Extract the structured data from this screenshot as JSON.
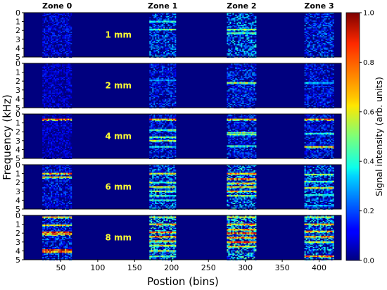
{
  "chart_data": {
    "type": "heatmap",
    "xlabel": "Postion (bins)",
    "ylabel": "Frequency (kHz)",
    "colorbar_label": "Signal intensity (arb. units)",
    "colormap": "jet",
    "xlim": [
      0,
      430
    ],
    "ylim": [
      0,
      5
    ],
    "y_inverted": true,
    "xticks": [
      50,
      100,
      150,
      200,
      250,
      300,
      350,
      400
    ],
    "yticks": [
      0,
      1,
      2,
      3,
      4,
      5
    ],
    "colorbar_range": [
      0.0,
      1.0
    ],
    "colorbar_ticks": [
      "0.0",
      "0.2",
      "0.4",
      "0.6",
      "0.8",
      "1.0"
    ],
    "zones": [
      {
        "label": "Zone 0",
        "x_range": [
          25,
          65
        ],
        "x_center": 45
      },
      {
        "label": "Zone 1",
        "x_range": [
          170,
          205
        ],
        "x_center": 188
      },
      {
        "label": "Zone 2",
        "x_range": [
          275,
          315
        ],
        "x_center": 295
      },
      {
        "label": "Zone 3",
        "x_range": [
          380,
          420
        ],
        "x_center": 400
      }
    ],
    "panels": [
      {
        "label": "1 mm",
        "zone_intensity": [
          0.15,
          0.25,
          0.3,
          0.22
        ],
        "bands": [
          {
            "zone": 1,
            "freq": 1.0,
            "intensity": 0.45
          },
          {
            "zone": 1,
            "freq": 1.9,
            "intensity": 0.55
          },
          {
            "zone": 2,
            "freq": 1.9,
            "intensity": 0.6
          },
          {
            "zone": 2,
            "freq": 2.3,
            "intensity": 0.5
          }
        ]
      },
      {
        "label": "2 mm",
        "zone_intensity": [
          0.12,
          0.2,
          0.22,
          0.18
        ],
        "bands": [
          {
            "zone": 1,
            "freq": 1.9,
            "intensity": 0.3
          },
          {
            "zone": 2,
            "freq": 2.2,
            "intensity": 0.6
          },
          {
            "zone": 3,
            "freq": 2.2,
            "intensity": 0.35
          }
        ]
      },
      {
        "label": "4 mm",
        "zone_intensity": [
          0.12,
          0.2,
          0.2,
          0.2
        ],
        "bands": [
          {
            "zone": 0,
            "freq": 0.6,
            "intensity": 0.8
          },
          {
            "zone": 1,
            "freq": 0.6,
            "intensity": 0.8
          },
          {
            "zone": 2,
            "freq": 0.6,
            "intensity": 0.8
          },
          {
            "zone": 3,
            "freq": 0.6,
            "intensity": 0.8
          },
          {
            "zone": 1,
            "freq": 1.8,
            "intensity": 0.5
          },
          {
            "zone": 1,
            "freq": 2.6,
            "intensity": 0.55
          },
          {
            "zone": 1,
            "freq": 3.0,
            "intensity": 0.65
          },
          {
            "zone": 1,
            "freq": 3.7,
            "intensity": 0.45
          },
          {
            "zone": 2,
            "freq": 2.1,
            "intensity": 0.6
          },
          {
            "zone": 2,
            "freq": 2.3,
            "intensity": 0.55
          },
          {
            "zone": 2,
            "freq": 3.6,
            "intensity": 0.45
          },
          {
            "zone": 3,
            "freq": 2.2,
            "intensity": 0.45
          },
          {
            "zone": 3,
            "freq": 3.7,
            "intensity": 0.75
          }
        ]
      },
      {
        "label": "6 mm",
        "zone_intensity": [
          0.18,
          0.28,
          0.32,
          0.28
        ],
        "bands": [
          {
            "zone": 0,
            "freq": 1.0,
            "intensity": 0.8
          },
          {
            "zone": 0,
            "freq": 1.4,
            "intensity": 0.7
          },
          {
            "zone": 1,
            "freq": 1.0,
            "intensity": 0.7
          },
          {
            "zone": 1,
            "freq": 2.0,
            "intensity": 0.55
          },
          {
            "zone": 1,
            "freq": 2.5,
            "intensity": 0.65
          },
          {
            "zone": 1,
            "freq": 3.0,
            "intensity": 0.6
          },
          {
            "zone": 1,
            "freq": 3.5,
            "intensity": 0.5
          },
          {
            "zone": 1,
            "freq": 4.0,
            "intensity": 0.45
          },
          {
            "zone": 2,
            "freq": 1.0,
            "intensity": 0.8
          },
          {
            "zone": 2,
            "freq": 1.6,
            "intensity": 0.85
          },
          {
            "zone": 2,
            "freq": 2.1,
            "intensity": 0.75
          },
          {
            "zone": 2,
            "freq": 2.5,
            "intensity": 0.8
          },
          {
            "zone": 2,
            "freq": 3.0,
            "intensity": 0.75
          },
          {
            "zone": 2,
            "freq": 3.5,
            "intensity": 0.6
          },
          {
            "zone": 3,
            "freq": 1.1,
            "intensity": 0.6
          },
          {
            "zone": 3,
            "freq": 1.9,
            "intensity": 0.55
          },
          {
            "zone": 3,
            "freq": 2.6,
            "intensity": 0.7
          },
          {
            "zone": 3,
            "freq": 3.4,
            "intensity": 0.45
          },
          {
            "zone": 3,
            "freq": 4.6,
            "intensity": 0.35
          }
        ]
      },
      {
        "label": "8 mm",
        "zone_intensity": [
          0.22,
          0.35,
          0.38,
          0.32
        ],
        "bands": [
          {
            "zone": 0,
            "freq": 0.2,
            "intensity": 0.7
          },
          {
            "zone": 0,
            "freq": 1.1,
            "intensity": 0.75
          },
          {
            "zone": 0,
            "freq": 1.9,
            "intensity": 0.95
          },
          {
            "zone": 0,
            "freq": 2.1,
            "intensity": 0.85
          },
          {
            "zone": 0,
            "freq": 3.9,
            "intensity": 0.95
          },
          {
            "zone": 0,
            "freq": 4.1,
            "intensity": 0.85
          },
          {
            "zone": 1,
            "freq": 0.2,
            "intensity": 0.6
          },
          {
            "zone": 1,
            "freq": 1.0,
            "intensity": 0.75
          },
          {
            "zone": 1,
            "freq": 1.9,
            "intensity": 0.85
          },
          {
            "zone": 1,
            "freq": 2.4,
            "intensity": 0.9
          },
          {
            "zone": 1,
            "freq": 2.9,
            "intensity": 0.75
          },
          {
            "zone": 1,
            "freq": 3.4,
            "intensity": 0.7
          },
          {
            "zone": 1,
            "freq": 4.0,
            "intensity": 0.6
          },
          {
            "zone": 1,
            "freq": 4.6,
            "intensity": 0.5
          },
          {
            "zone": 2,
            "freq": 0.2,
            "intensity": 0.65
          },
          {
            "zone": 2,
            "freq": 1.0,
            "intensity": 0.8
          },
          {
            "zone": 2,
            "freq": 1.6,
            "intensity": 0.85
          },
          {
            "zone": 2,
            "freq": 2.0,
            "intensity": 0.95
          },
          {
            "zone": 2,
            "freq": 2.5,
            "intensity": 0.9
          },
          {
            "zone": 2,
            "freq": 3.0,
            "intensity": 0.85
          },
          {
            "zone": 2,
            "freq": 3.5,
            "intensity": 0.7
          },
          {
            "zone": 3,
            "freq": 0.2,
            "intensity": 0.6
          },
          {
            "zone": 3,
            "freq": 1.0,
            "intensity": 0.7
          },
          {
            "zone": 3,
            "freq": 1.8,
            "intensity": 0.75
          },
          {
            "zone": 3,
            "freq": 2.4,
            "intensity": 0.8
          },
          {
            "zone": 3,
            "freq": 3.0,
            "intensity": 0.65
          },
          {
            "zone": 3,
            "freq": 4.6,
            "intensity": 0.85
          }
        ]
      }
    ]
  }
}
